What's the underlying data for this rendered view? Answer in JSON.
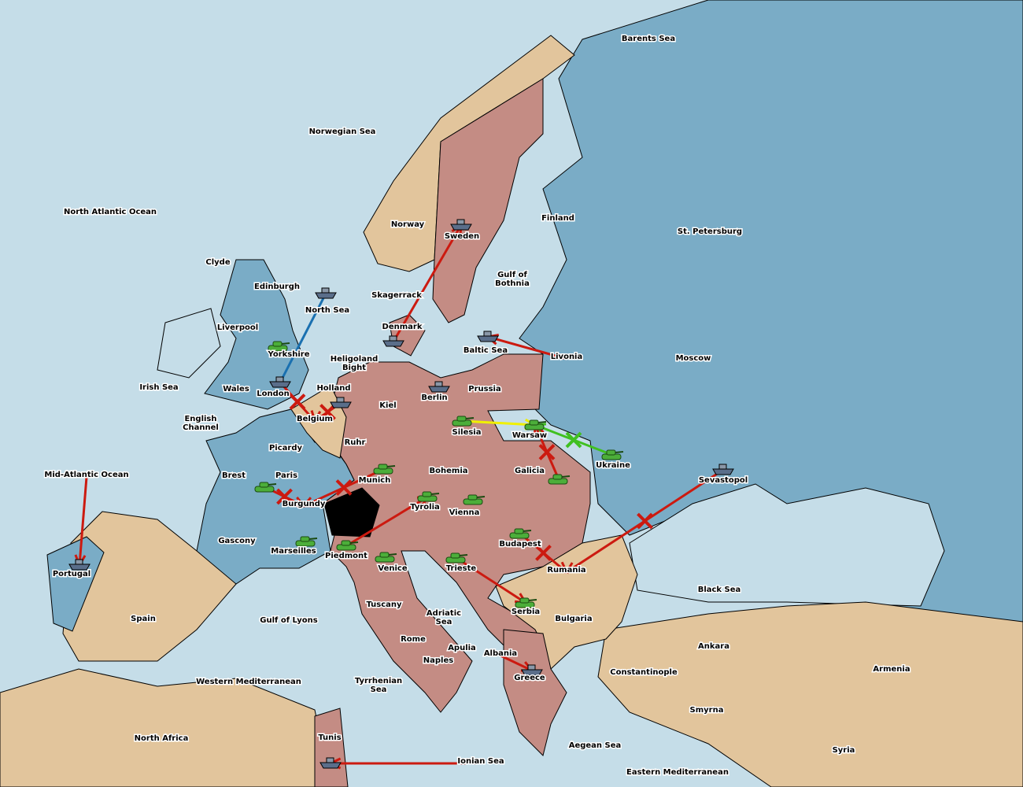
{
  "colors": {
    "sea": "#c5dde8",
    "blue_power": "#7aacc6",
    "pink_power": "#c48c84",
    "neutral": "#e2c59c",
    "switzerland": "#000000",
    "order_red": "#cc1a10",
    "support_blue": "#1a70b0",
    "move_yellow": "#f0f000",
    "move_green": "#40c020",
    "fleet_unit": "#5a6e8a",
    "army_unit": "#4cae3a",
    "supply_center_star": "#ffee00"
  },
  "provinces": [
    "Barents Sea",
    "Norwegian Sea",
    "North Atlantic Ocean",
    "Clyde",
    "Edinburgh",
    "Liverpool",
    "Yorkshire",
    "Wales",
    "London",
    "Irish Sea",
    "English Channel",
    "North Sea",
    "Heligoland Bight",
    "Holland",
    "Belgium",
    "Kiel",
    "Berlin",
    "Prussia",
    "Denmark",
    "Skagerrack",
    "Norway",
    "Sweden",
    "Gulf of Bothnia",
    "Finland",
    "St. Petersburg",
    "Livonia",
    "Moscow",
    "Baltic Sea",
    "Warsaw",
    "Silesia",
    "Ukraine",
    "Galicia",
    "Bohemia",
    "Munich",
    "Ruhr",
    "Picardy",
    "Brest",
    "Paris",
    "Burgundy",
    "Gascony",
    "Marseilles",
    "Piedmont",
    "Tyrolia",
    "Vienna",
    "Venice",
    "Trieste",
    "Budapest",
    "Rumania",
    "Sevastopol",
    "Black Sea",
    "Serbia",
    "Bulgaria",
    "Tuscany",
    "Adriatic Sea",
    "Rome",
    "Apulia",
    "Naples",
    "Albania",
    "Greece",
    "Tyrrhenian Sea",
    "Ionian Sea",
    "Aegean Sea",
    "Eastern Mediterranean",
    "Western Mediterranean",
    "Gulf of Lyons",
    "Spain",
    "Portugal",
    "Mid-Atlantic Ocean",
    "North Africa",
    "Tunis",
    "Constantinople",
    "Ankara",
    "Smyrna",
    "Armenia",
    "Syria"
  ],
  "units": [
    {
      "type": "fleet",
      "at": "North Sea"
    },
    {
      "type": "army",
      "at": "Yorkshire"
    },
    {
      "type": "fleet",
      "at": "London"
    },
    {
      "type": "fleet",
      "at": "Holland"
    },
    {
      "type": "fleet",
      "at": "Denmark"
    },
    {
      "type": "fleet",
      "at": "Sweden"
    },
    {
      "type": "fleet",
      "at": "Baltic Sea"
    },
    {
      "type": "fleet",
      "at": "Berlin"
    },
    {
      "type": "army",
      "at": "Silesia"
    },
    {
      "type": "army",
      "at": "Warsaw"
    },
    {
      "type": "army",
      "at": "Ukraine"
    },
    {
      "type": "army",
      "at": "Galicia"
    },
    {
      "type": "army",
      "at": "Munich"
    },
    {
      "type": "army",
      "at": "Paris"
    },
    {
      "type": "army",
      "at": "Tyrolia"
    },
    {
      "type": "army",
      "at": "Vienna"
    },
    {
      "type": "army",
      "at": "Marseilles"
    },
    {
      "type": "army",
      "at": "Piedmont"
    },
    {
      "type": "army",
      "at": "Venice"
    },
    {
      "type": "army",
      "at": "Trieste"
    },
    {
      "type": "army",
      "at": "Budapest"
    },
    {
      "type": "army",
      "at": "Serbia"
    },
    {
      "type": "fleet",
      "at": "Greece"
    },
    {
      "type": "fleet",
      "at": "Sevastopol"
    },
    {
      "type": "fleet",
      "at": "Portugal"
    },
    {
      "type": "fleet",
      "at": "Tunis"
    }
  ],
  "orders": [
    {
      "from": "Mid-Atlantic Ocean",
      "to": "Portugal",
      "color": "red"
    },
    {
      "from": "Ionian Sea",
      "to": "Tunis",
      "color": "red"
    },
    {
      "from": "Livonia",
      "to": "Baltic Sea",
      "color": "red"
    },
    {
      "from": "Denmark",
      "to": "Sweden",
      "color": "red"
    },
    {
      "from": "North Sea",
      "to": "London",
      "color": "blue"
    },
    {
      "from": "London",
      "to": "Belgium",
      "color": "red",
      "failed": true
    },
    {
      "from": "Holland",
      "to": "Belgium",
      "color": "red",
      "failed": true
    },
    {
      "from": "Silesia",
      "to": "Warsaw",
      "color": "yellow"
    },
    {
      "from": "Ukraine",
      "to": "Warsaw",
      "color": "green",
      "failed": true
    },
    {
      "from": "Galicia",
      "to": "Warsaw",
      "color": "red",
      "failed": true
    },
    {
      "from": "Munich",
      "to": "Burgundy",
      "color": "red",
      "failed": true
    },
    {
      "from": "Paris",
      "to": "Burgundy",
      "color": "red",
      "failed": true
    },
    {
      "from": "Piedmont",
      "to": "Tyrolia",
      "color": "red"
    },
    {
      "from": "Budapest",
      "to": "Rumania",
      "color": "red",
      "failed": true
    },
    {
      "from": "Sevastopol",
      "to": "Rumania",
      "color": "red",
      "failed": true
    },
    {
      "from": "Trieste",
      "to": "Serbia",
      "color": "red"
    },
    {
      "from": "Albania",
      "to": "Greece",
      "color": "red"
    }
  ]
}
